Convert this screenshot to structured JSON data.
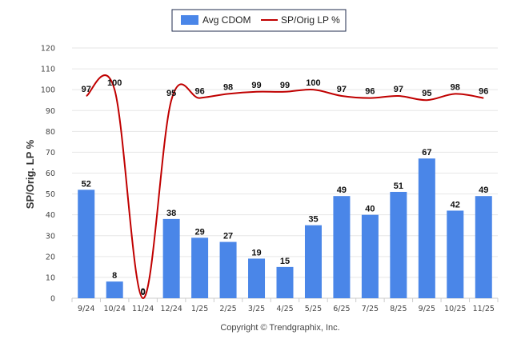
{
  "chart_data": {
    "type": "bar",
    "categories": [
      "9/24",
      "10/24",
      "11/24",
      "12/24",
      "1/25",
      "2/25",
      "3/25",
      "4/25",
      "5/25",
      "6/25",
      "7/25",
      "8/25",
      "9/25",
      "10/25",
      "11/25"
    ],
    "series": [
      {
        "name": "Avg CDOM",
        "type": "bar",
        "color": "#4a86e8",
        "values": [
          52,
          8,
          0,
          38,
          29,
          27,
          19,
          15,
          35,
          49,
          40,
          51,
          67,
          42,
          49
        ]
      },
      {
        "name": "SP/Orig LP %",
        "type": "line",
        "color": "#c00000",
        "values": [
          97,
          100,
          0,
          95,
          96,
          98,
          99,
          99,
          100,
          97,
          96,
          97,
          95,
          98,
          96
        ]
      }
    ],
    "ylabel": "SP/Orig. LP %",
    "xlabel": "",
    "ylim": [
      0,
      120
    ],
    "yticks": [
      0,
      10,
      20,
      30,
      40,
      50,
      60,
      70,
      80,
      90,
      100,
      110,
      120
    ],
    "grid": true,
    "legend": "top-center"
  },
  "footer": {
    "copyright": "Copyright © Trendgraphix, Inc."
  }
}
